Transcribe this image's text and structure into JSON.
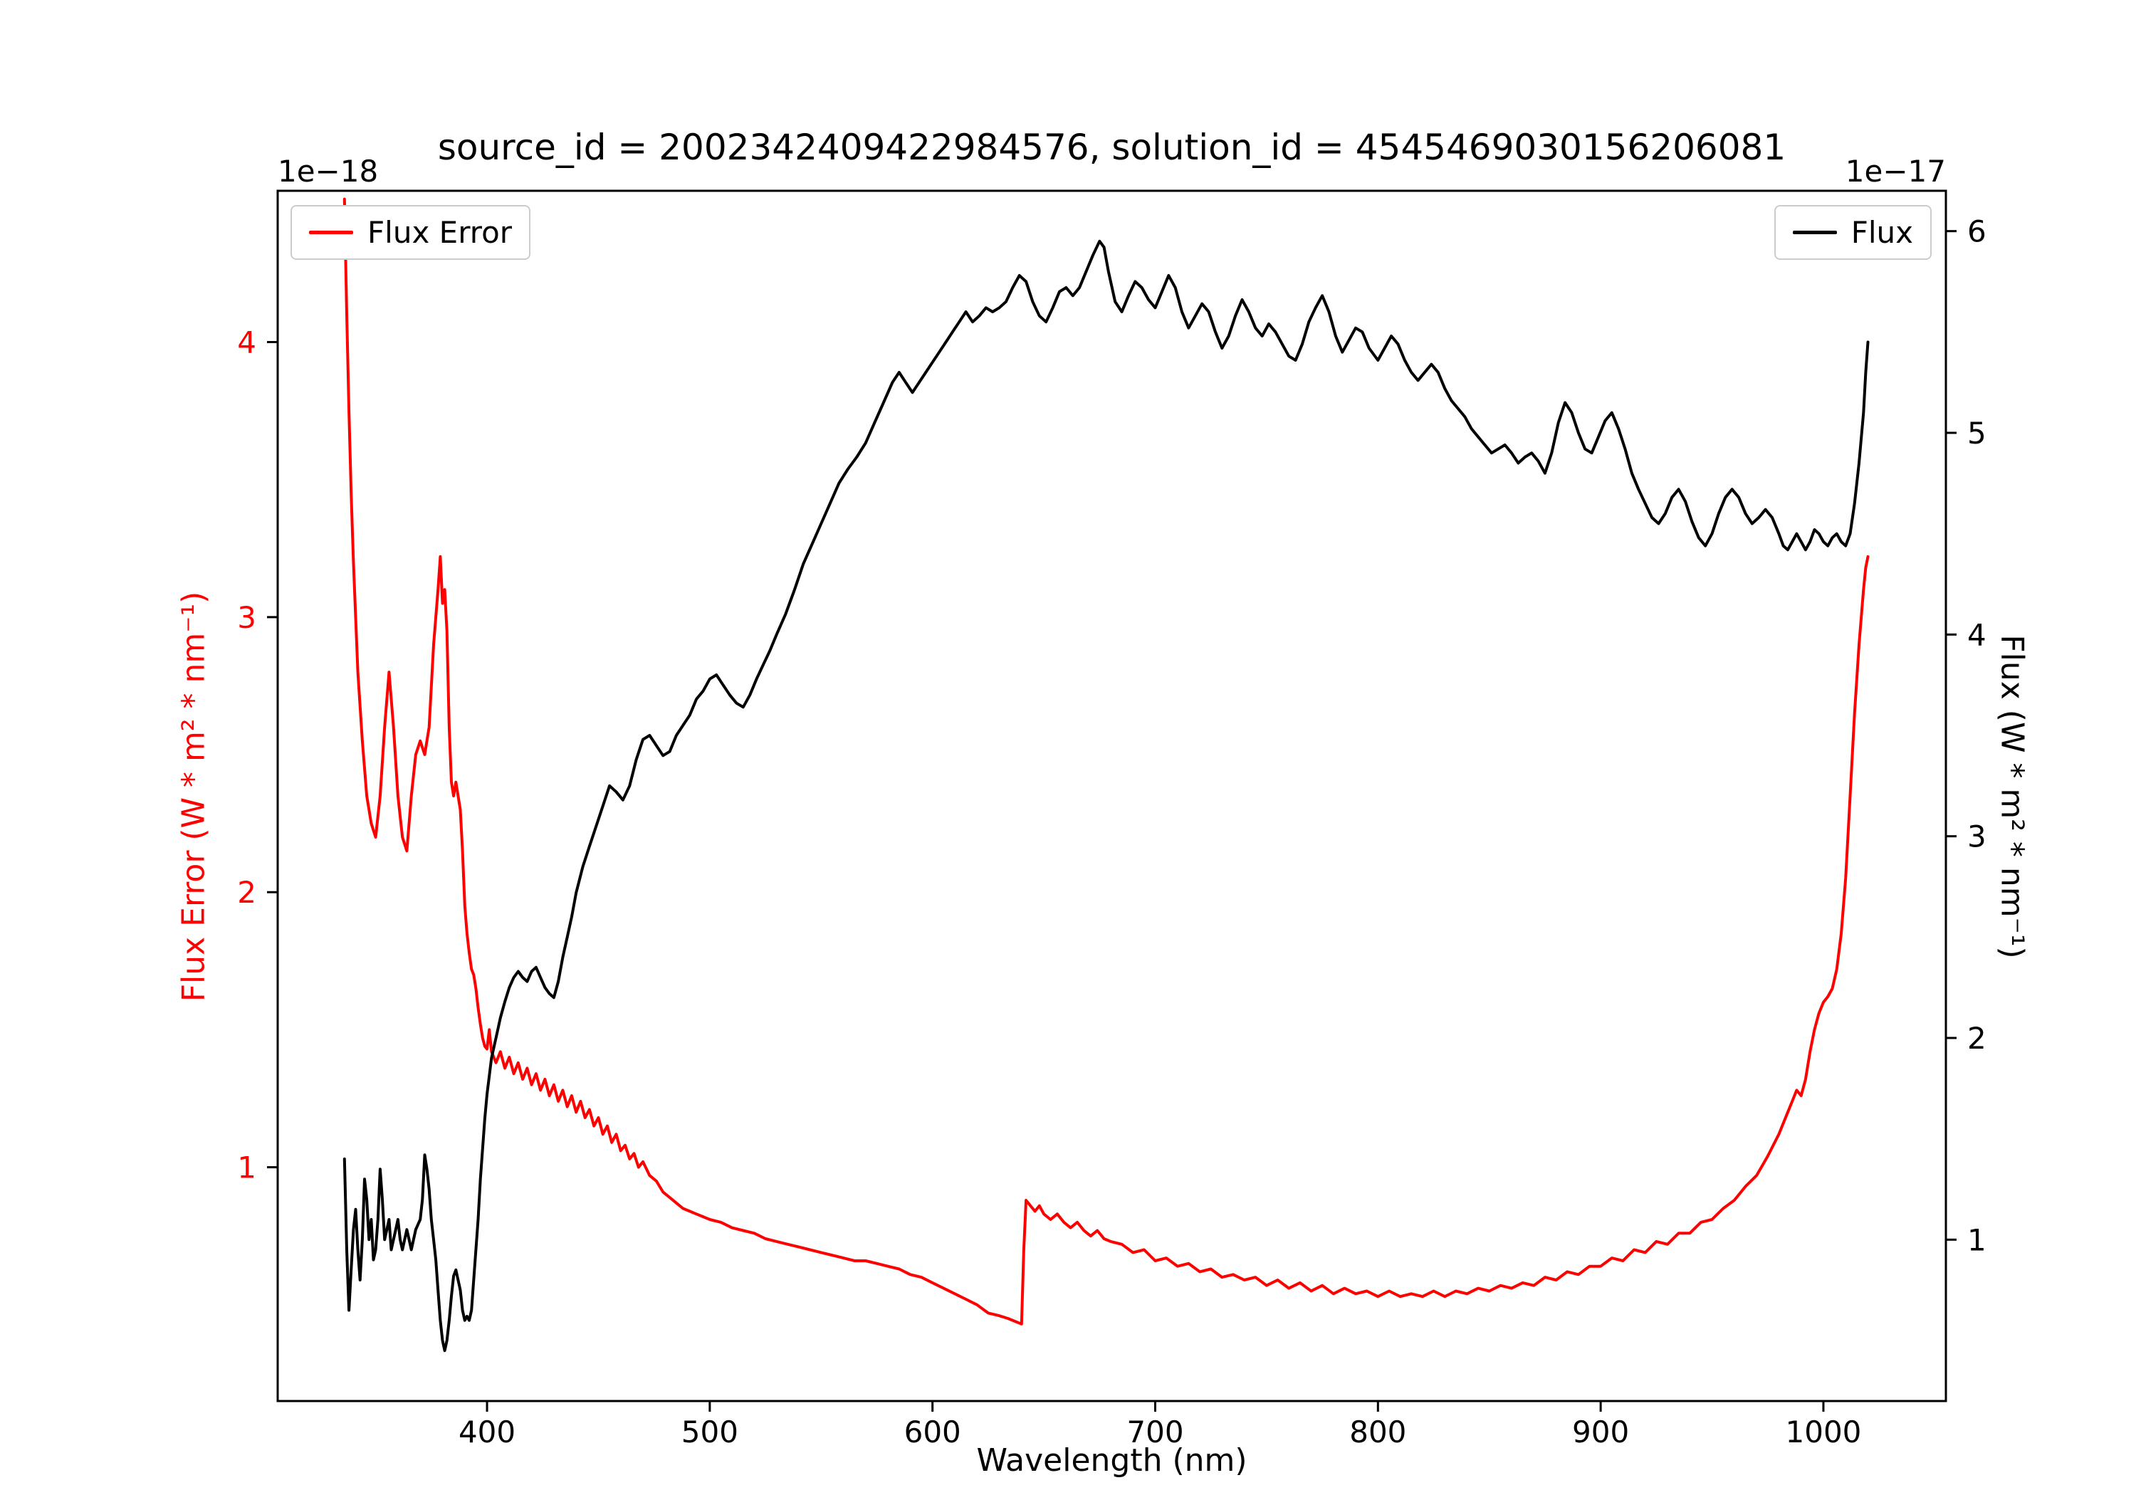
{
  "figure": {
    "background": "#ffffff"
  },
  "chart_data": {
    "type": "line",
    "title": "source_id = 2002342409422984576, solution_id = 4545469030156206081",
    "xlabel": "Wavelength (nm)",
    "grid": false,
    "xlim": [
      306,
      1055
    ],
    "x_ticks": [
      400,
      500,
      600,
      700,
      800,
      900,
      1000
    ],
    "axes": {
      "left": {
        "label": "Flux Error (W * m² * nm⁻¹)",
        "offset_label": "1e−18",
        "color": "#ff0000",
        "ticks": [
          1,
          2,
          3,
          4
        ],
        "ylim": [
          0.15,
          4.55
        ]
      },
      "right": {
        "label": "Flux (W * m² * nm⁻¹)",
        "offset_label": "1e−17",
        "color": "#000000",
        "ticks": [
          1,
          2,
          3,
          4,
          5,
          6
        ],
        "ylim": [
          0.2,
          6.2
        ]
      }
    },
    "legends": [
      {
        "label": "Flux Error",
        "color": "#ff0000",
        "position": "upper-left"
      },
      {
        "label": "Flux",
        "color": "#000000",
        "position": "upper-right"
      }
    ],
    "series": [
      {
        "name": "Flux Error",
        "axis": "left",
        "color": "#ff0000",
        "x": [
          336,
          337,
          338,
          339,
          340,
          342,
          344,
          346,
          348,
          350,
          352,
          354,
          356,
          358,
          360,
          362,
          364,
          366,
          368,
          370,
          372,
          374,
          376,
          377,
          378,
          379,
          380,
          381,
          382,
          383,
          384,
          385,
          386,
          387,
          388,
          389,
          390,
          391,
          392,
          393,
          394,
          395,
          396,
          397,
          398,
          399,
          400,
          401,
          402,
          404,
          406,
          408,
          410,
          412,
          414,
          416,
          418,
          420,
          422,
          424,
          426,
          428,
          430,
          432,
          434,
          436,
          438,
          440,
          442,
          444,
          446,
          448,
          450,
          452,
          454,
          456,
          458,
          460,
          462,
          464,
          466,
          468,
          470,
          473,
          476,
          479,
          482,
          485,
          488,
          491,
          494,
          497,
          500,
          505,
          510,
          515,
          520,
          525,
          530,
          535,
          540,
          545,
          550,
          555,
          560,
          565,
          570,
          575,
          580,
          585,
          590,
          595,
          600,
          605,
          610,
          615,
          620,
          625,
          630,
          634,
          637,
          640,
          641,
          642,
          644,
          646,
          648,
          650,
          653,
          656,
          659,
          662,
          665,
          668,
          671,
          674,
          677,
          680,
          685,
          690,
          695,
          700,
          705,
          710,
          715,
          720,
          725,
          730,
          735,
          740,
          745,
          750,
          755,
          760,
          765,
          770,
          775,
          780,
          785,
          790,
          795,
          800,
          805,
          810,
          815,
          820,
          825,
          830,
          835,
          840,
          845,
          850,
          855,
          860,
          865,
          870,
          875,
          880,
          885,
          890,
          895,
          900,
          905,
          910,
          915,
          920,
          925,
          930,
          935,
          940,
          945,
          950,
          955,
          960,
          965,
          970,
          975,
          980,
          983,
          986,
          988,
          990,
          992,
          994,
          996,
          998,
          1000,
          1002,
          1004,
          1006,
          1008,
          1010,
          1012,
          1014,
          1016,
          1018,
          1019,
          1020
        ],
        "y": [
          4.52,
          4.1,
          3.75,
          3.45,
          3.2,
          2.8,
          2.55,
          2.35,
          2.25,
          2.2,
          2.35,
          2.6,
          2.8,
          2.6,
          2.35,
          2.2,
          2.15,
          2.35,
          2.5,
          2.55,
          2.5,
          2.6,
          2.9,
          3.0,
          3.1,
          3.22,
          3.05,
          3.1,
          2.95,
          2.6,
          2.4,
          2.35,
          2.4,
          2.35,
          2.3,
          2.15,
          1.95,
          1.85,
          1.78,
          1.72,
          1.7,
          1.65,
          1.58,
          1.52,
          1.47,
          1.44,
          1.43,
          1.5,
          1.42,
          1.38,
          1.42,
          1.36,
          1.4,
          1.34,
          1.38,
          1.32,
          1.36,
          1.3,
          1.34,
          1.28,
          1.32,
          1.26,
          1.3,
          1.24,
          1.28,
          1.22,
          1.26,
          1.2,
          1.24,
          1.18,
          1.21,
          1.15,
          1.18,
          1.12,
          1.15,
          1.09,
          1.12,
          1.06,
          1.08,
          1.03,
          1.05,
          1.0,
          1.02,
          0.97,
          0.95,
          0.91,
          0.89,
          0.87,
          0.85,
          0.84,
          0.83,
          0.82,
          0.81,
          0.8,
          0.78,
          0.77,
          0.76,
          0.74,
          0.73,
          0.72,
          0.71,
          0.7,
          0.69,
          0.68,
          0.67,
          0.66,
          0.66,
          0.65,
          0.64,
          0.63,
          0.61,
          0.6,
          0.58,
          0.56,
          0.54,
          0.52,
          0.5,
          0.47,
          0.46,
          0.45,
          0.44,
          0.43,
          0.7,
          0.88,
          0.86,
          0.84,
          0.86,
          0.83,
          0.81,
          0.83,
          0.8,
          0.78,
          0.8,
          0.77,
          0.75,
          0.77,
          0.74,
          0.73,
          0.72,
          0.69,
          0.7,
          0.66,
          0.67,
          0.64,
          0.65,
          0.62,
          0.63,
          0.6,
          0.61,
          0.59,
          0.6,
          0.57,
          0.59,
          0.56,
          0.58,
          0.55,
          0.57,
          0.54,
          0.56,
          0.54,
          0.55,
          0.53,
          0.55,
          0.53,
          0.54,
          0.53,
          0.55,
          0.53,
          0.55,
          0.54,
          0.56,
          0.55,
          0.57,
          0.56,
          0.58,
          0.57,
          0.6,
          0.59,
          0.62,
          0.61,
          0.64,
          0.64,
          0.67,
          0.66,
          0.7,
          0.69,
          0.73,
          0.72,
          0.76,
          0.76,
          0.8,
          0.81,
          0.85,
          0.88,
          0.93,
          0.97,
          1.04,
          1.12,
          1.18,
          1.24,
          1.28,
          1.26,
          1.32,
          1.42,
          1.5,
          1.56,
          1.6,
          1.62,
          1.65,
          1.72,
          1.85,
          2.05,
          2.35,
          2.65,
          2.9,
          3.1,
          3.18,
          3.22
        ]
      },
      {
        "name": "Flux",
        "axis": "right",
        "color": "#000000",
        "x": [
          336,
          337,
          338,
          339,
          340,
          341,
          342,
          343,
          344,
          345,
          346,
          347,
          348,
          349,
          350,
          351,
          352,
          353,
          354,
          355,
          356,
          357,
          358,
          359,
          360,
          361,
          362,
          363,
          364,
          365,
          366,
          367,
          368,
          370,
          371,
          372,
          373,
          374,
          375,
          376,
          377,
          378,
          379,
          380,
          381,
          382,
          383,
          384,
          385,
          386,
          387,
          388,
          389,
          390,
          391,
          392,
          393,
          394,
          395,
          396,
          397,
          398,
          399,
          400,
          402,
          404,
          406,
          408,
          410,
          412,
          414,
          416,
          418,
          420,
          422,
          424,
          426,
          428,
          430,
          432,
          434,
          436,
          438,
          440,
          443,
          446,
          449,
          452,
          455,
          458,
          461,
          464,
          467,
          470,
          473,
          476,
          479,
          482,
          485,
          488,
          491,
          494,
          497,
          500,
          503,
          506,
          509,
          512,
          515,
          518,
          521,
          524,
          527,
          530,
          534,
          538,
          542,
          546,
          550,
          554,
          558,
          562,
          566,
          570,
          574,
          578,
          582,
          585,
          588,
          591,
          594,
          597,
          600,
          603,
          606,
          609,
          612,
          615,
          618,
          621,
          624,
          627,
          630,
          633,
          636,
          639,
          642,
          645,
          648,
          651,
          654,
          657,
          660,
          663,
          666,
          669,
          672,
          675,
          677,
          679,
          682,
          685,
          688,
          691,
          694,
          697,
          700,
          703,
          706,
          709,
          712,
          715,
          718,
          721,
          724,
          727,
          730,
          733,
          736,
          739,
          742,
          745,
          748,
          751,
          754,
          757,
          760,
          763,
          766,
          769,
          772,
          775,
          778,
          781,
          784,
          787,
          790,
          793,
          796,
          800,
          803,
          806,
          809,
          812,
          815,
          818,
          821,
          824,
          827,
          830,
          833,
          836,
          839,
          842,
          845,
          848,
          851,
          854,
          857,
          860,
          863,
          866,
          869,
          872,
          875,
          878,
          881,
          884,
          887,
          890,
          893,
          896,
          899,
          902,
          905,
          908,
          911,
          914,
          917,
          920,
          923,
          926,
          929,
          932,
          935,
          938,
          941,
          944,
          947,
          950,
          953,
          956,
          959,
          962,
          965,
          968,
          971,
          974,
          977,
          980,
          982,
          984,
          986,
          988,
          990,
          992,
          994,
          996,
          998,
          1000,
          1002,
          1004,
          1006,
          1008,
          1010,
          1012,
          1014,
          1016,
          1018,
          1019,
          1020
        ],
        "y": [
          1.4,
          0.95,
          0.65,
          0.85,
          1.05,
          1.15,
          0.95,
          0.8,
          1.0,
          1.3,
          1.2,
          1.0,
          1.1,
          0.9,
          0.95,
          1.1,
          1.35,
          1.2,
          1.0,
          1.05,
          1.1,
          0.95,
          1.0,
          1.05,
          1.1,
          1.0,
          0.95,
          1.0,
          1.05,
          1.0,
          0.95,
          1.0,
          1.05,
          1.1,
          1.2,
          1.42,
          1.35,
          1.25,
          1.1,
          1.0,
          0.9,
          0.75,
          0.6,
          0.5,
          0.45,
          0.5,
          0.6,
          0.72,
          0.82,
          0.85,
          0.8,
          0.75,
          0.65,
          0.6,
          0.62,
          0.6,
          0.65,
          0.8,
          0.95,
          1.1,
          1.3,
          1.45,
          1.6,
          1.72,
          1.9,
          2.0,
          2.1,
          2.18,
          2.25,
          2.3,
          2.33,
          2.3,
          2.28,
          2.33,
          2.35,
          2.3,
          2.25,
          2.22,
          2.2,
          2.28,
          2.4,
          2.5,
          2.6,
          2.72,
          2.85,
          2.95,
          3.05,
          3.15,
          3.25,
          3.22,
          3.18,
          3.25,
          3.38,
          3.48,
          3.5,
          3.45,
          3.4,
          3.42,
          3.5,
          3.55,
          3.6,
          3.68,
          3.72,
          3.78,
          3.8,
          3.75,
          3.7,
          3.66,
          3.64,
          3.7,
          3.78,
          3.85,
          3.92,
          4.0,
          4.1,
          4.22,
          4.35,
          4.45,
          4.55,
          4.65,
          4.75,
          4.82,
          4.88,
          4.95,
          5.05,
          5.15,
          5.25,
          5.3,
          5.25,
          5.2,
          5.25,
          5.3,
          5.35,
          5.4,
          5.45,
          5.5,
          5.55,
          5.6,
          5.55,
          5.58,
          5.62,
          5.6,
          5.62,
          5.65,
          5.72,
          5.78,
          5.75,
          5.65,
          5.58,
          5.55,
          5.62,
          5.7,
          5.72,
          5.68,
          5.72,
          5.8,
          5.88,
          5.95,
          5.92,
          5.8,
          5.65,
          5.6,
          5.68,
          5.75,
          5.72,
          5.66,
          5.62,
          5.7,
          5.78,
          5.72,
          5.6,
          5.52,
          5.58,
          5.64,
          5.6,
          5.5,
          5.42,
          5.48,
          5.58,
          5.66,
          5.6,
          5.52,
          5.48,
          5.54,
          5.5,
          5.44,
          5.38,
          5.36,
          5.44,
          5.55,
          5.62,
          5.68,
          5.6,
          5.48,
          5.4,
          5.46,
          5.52,
          5.5,
          5.42,
          5.36,
          5.42,
          5.48,
          5.44,
          5.36,
          5.3,
          5.26,
          5.3,
          5.34,
          5.3,
          5.22,
          5.16,
          5.12,
          5.08,
          5.02,
          4.98,
          4.94,
          4.9,
          4.92,
          4.94,
          4.9,
          4.85,
          4.88,
          4.9,
          4.86,
          4.8,
          4.9,
          5.05,
          5.15,
          5.1,
          5.0,
          4.92,
          4.9,
          4.98,
          5.06,
          5.1,
          5.02,
          4.92,
          4.8,
          4.72,
          4.65,
          4.58,
          4.55,
          4.6,
          4.68,
          4.72,
          4.66,
          4.56,
          4.48,
          4.44,
          4.5,
          4.6,
          4.68,
          4.72,
          4.68,
          4.6,
          4.55,
          4.58,
          4.62,
          4.58,
          4.5,
          4.44,
          4.42,
          4.46,
          4.5,
          4.46,
          4.42,
          4.46,
          4.52,
          4.5,
          4.46,
          4.44,
          4.48,
          4.5,
          4.46,
          4.44,
          4.5,
          4.65,
          4.85,
          5.1,
          5.3,
          5.45
        ]
      }
    ]
  }
}
